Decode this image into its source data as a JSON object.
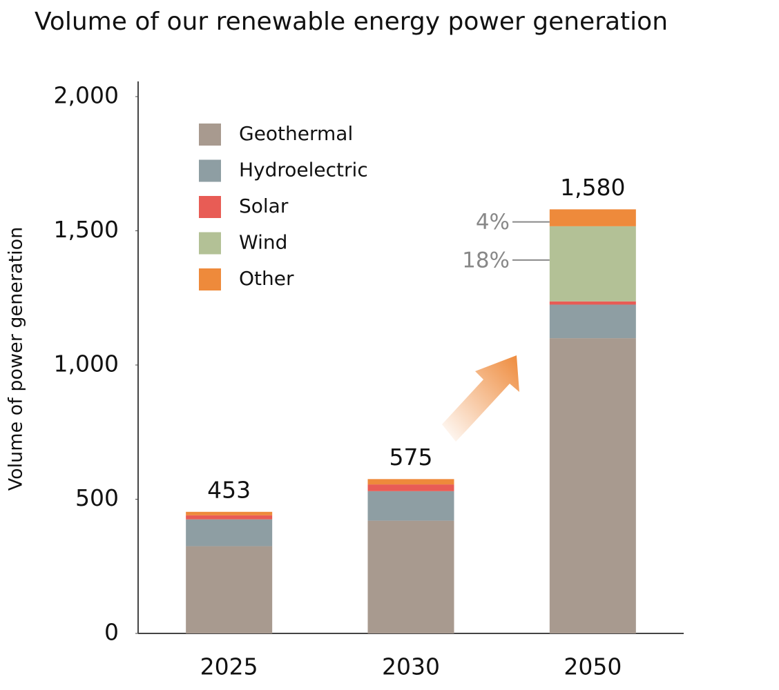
{
  "chart_data": {
    "type": "stacked_bar",
    "title": "Volume of our renewable energy power generation",
    "y_label": "Volume of power generation",
    "categories": [
      "2025",
      "2030",
      "2050"
    ],
    "series": [
      {
        "name": "Geothermal",
        "color": "#a89a8f",
        "values": [
          325,
          420,
          1100
        ]
      },
      {
        "name": "Hydroelectric",
        "color": "#8e9ea3",
        "values": [
          100,
          110,
          125
        ]
      },
      {
        "name": "Solar",
        "color": "#e85c55",
        "values": [
          15,
          25,
          12
        ]
      },
      {
        "name": "Wind",
        "color": "#b3c196",
        "values": [
          0,
          0,
          280
        ]
      },
      {
        "name": "Other",
        "color": "#ee8a3b",
        "values": [
          13,
          20,
          63
        ]
      }
    ],
    "totals": [
      453,
      575,
      1580
    ],
    "totals_labels": [
      "453",
      "575",
      "1,580"
    ],
    "annotations": [
      "4%",
      "18%"
    ],
    "ylim": [
      0,
      2000
    ],
    "yticks": [
      0,
      500,
      {
        "value": 1000,
        "label": "1,000"
      },
      {
        "value": 1500,
        "label": "1,500"
      },
      {
        "value": 2000,
        "label": "2,000"
      }
    ],
    "legend": "upper left"
  }
}
